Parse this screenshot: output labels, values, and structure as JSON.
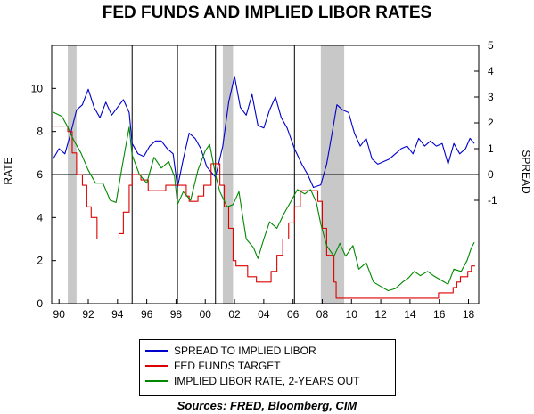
{
  "title": "FED FUNDS AND IMPLIED LIBOR RATES",
  "sources": "Sources:  FRED, Bloomberg, CIM",
  "chart_data": {
    "type": "line",
    "x_range": [
      1989.5,
      2018.7
    ],
    "left_axis": {
      "label": "RATE",
      "ticks": [
        "0",
        "2",
        "4",
        "6",
        "8",
        "10"
      ],
      "range": [
        0,
        12
      ]
    },
    "right_axis": {
      "label": "SPREAD",
      "ticks": [
        "-1",
        "0",
        "1",
        "2",
        "3",
        "4",
        "5"
      ],
      "range": [
        -5,
        5
      ]
    },
    "x_ticks": [
      "90",
      "92",
      "94",
      "96",
      "98",
      "00",
      "02",
      "04",
      "06",
      "08",
      "10",
      "12",
      "14",
      "16",
      "18"
    ],
    "x_tick_years": [
      1990,
      1992,
      1994,
      1996,
      1998,
      2000,
      2002,
      2004,
      2006,
      2008,
      2010,
      2012,
      2014,
      2016,
      2018
    ],
    "recessions": [
      [
        1990.6,
        1991.2
      ],
      [
        2001.2,
        2001.9
      ],
      [
        2007.9,
        2009.5
      ]
    ],
    "vertical_lines": [
      1995.0,
      1998.1,
      2000.7,
      2006.1
    ],
    "zero_line_spread": 0,
    "series": [
      {
        "name": "SPREAD TO IMPLIED LIBOR",
        "axis": "right",
        "color": "#0000cc",
        "points": [
          [
            1989.6,
            0.6
          ],
          [
            1990.0,
            1.0
          ],
          [
            1990.4,
            0.8
          ],
          [
            1990.8,
            1.6
          ],
          [
            1991.2,
            2.5
          ],
          [
            1991.6,
            2.7
          ],
          [
            1992.0,
            3.3
          ],
          [
            1992.4,
            2.6
          ],
          [
            1992.8,
            2.2
          ],
          [
            1993.2,
            2.8
          ],
          [
            1993.6,
            2.3
          ],
          [
            1994.0,
            2.6
          ],
          [
            1994.4,
            2.9
          ],
          [
            1994.8,
            2.4
          ],
          [
            1995.0,
            1.2
          ],
          [
            1995.4,
            0.8
          ],
          [
            1995.8,
            0.7
          ],
          [
            1996.2,
            1.1
          ],
          [
            1996.6,
            1.3
          ],
          [
            1997.0,
            1.3
          ],
          [
            1997.4,
            1.0
          ],
          [
            1997.8,
            0.8
          ],
          [
            1998.1,
            -0.5
          ],
          [
            1998.5,
            0.6
          ],
          [
            1998.9,
            1.6
          ],
          [
            1999.3,
            1.4
          ],
          [
            1999.7,
            1.0
          ],
          [
            2000.1,
            0.3
          ],
          [
            2000.7,
            -0.1
          ],
          [
            2001.2,
            1.1
          ],
          [
            2001.6,
            2.8
          ],
          [
            2002.0,
            3.8
          ],
          [
            2002.4,
            2.6
          ],
          [
            2002.8,
            2.3
          ],
          [
            2003.2,
            3.1
          ],
          [
            2003.6,
            1.9
          ],
          [
            2004.0,
            1.8
          ],
          [
            2004.4,
            2.5
          ],
          [
            2004.8,
            3.0
          ],
          [
            2005.2,
            2.2
          ],
          [
            2005.6,
            1.8
          ],
          [
            2006.1,
            1.0
          ],
          [
            2006.6,
            0.4
          ],
          [
            2007.0,
            0.0
          ],
          [
            2007.4,
            -0.5
          ],
          [
            2007.9,
            -0.4
          ],
          [
            2008.3,
            0.4
          ],
          [
            2008.7,
            1.7
          ],
          [
            2009.0,
            2.7
          ],
          [
            2009.4,
            2.5
          ],
          [
            2009.8,
            2.4
          ],
          [
            2010.2,
            1.6
          ],
          [
            2010.6,
            1.1
          ],
          [
            2011.0,
            1.4
          ],
          [
            2011.4,
            0.6
          ],
          [
            2011.8,
            0.4
          ],
          [
            2012.2,
            0.5
          ],
          [
            2012.6,
            0.6
          ],
          [
            2013.0,
            0.8
          ],
          [
            2013.4,
            1.0
          ],
          [
            2013.8,
            1.1
          ],
          [
            2014.2,
            0.8
          ],
          [
            2014.6,
            1.4
          ],
          [
            2015.0,
            1.1
          ],
          [
            2015.4,
            1.3
          ],
          [
            2015.8,
            1.1
          ],
          [
            2016.2,
            1.2
          ],
          [
            2016.6,
            0.4
          ],
          [
            2017.0,
            1.2
          ],
          [
            2017.4,
            0.8
          ],
          [
            2017.8,
            1.0
          ],
          [
            2018.1,
            1.4
          ],
          [
            2018.4,
            1.2
          ]
        ]
      },
      {
        "name": "FED FUNDS TARGET",
        "axis": "left",
        "color": "#dd0000",
        "points": [
          [
            1989.6,
            8.25
          ],
          [
            1990.6,
            8.0
          ],
          [
            1990.9,
            7.0
          ],
          [
            1991.2,
            6.0
          ],
          [
            1991.6,
            5.5
          ],
          [
            1991.9,
            4.5
          ],
          [
            1992.2,
            4.0
          ],
          [
            1992.6,
            3.0
          ],
          [
            1994.1,
            3.25
          ],
          [
            1994.4,
            4.25
          ],
          [
            1994.8,
            5.5
          ],
          [
            1995.0,
            6.0
          ],
          [
            1995.6,
            5.75
          ],
          [
            1996.1,
            5.25
          ],
          [
            1997.3,
            5.5
          ],
          [
            1998.7,
            5.0
          ],
          [
            1998.9,
            4.75
          ],
          [
            1999.5,
            5.0
          ],
          [
            1999.9,
            5.5
          ],
          [
            2000.4,
            6.5
          ],
          [
            2001.0,
            5.5
          ],
          [
            2001.3,
            4.5
          ],
          [
            2001.6,
            3.5
          ],
          [
            2001.9,
            2.0
          ],
          [
            2002.1,
            1.75
          ],
          [
            2002.9,
            1.25
          ],
          [
            2003.5,
            1.0
          ],
          [
            2004.5,
            1.5
          ],
          [
            2004.9,
            2.25
          ],
          [
            2005.3,
            3.0
          ],
          [
            2005.7,
            3.75
          ],
          [
            2006.1,
            4.5
          ],
          [
            2006.5,
            5.25
          ],
          [
            2007.7,
            4.75
          ],
          [
            2008.0,
            3.5
          ],
          [
            2008.3,
            2.25
          ],
          [
            2008.8,
            1.0
          ],
          [
            2008.95,
            0.25
          ],
          [
            2015.95,
            0.5
          ],
          [
            2016.95,
            0.75
          ],
          [
            2017.2,
            1.0
          ],
          [
            2017.45,
            1.25
          ],
          [
            2017.95,
            1.5
          ],
          [
            2018.2,
            1.75
          ]
        ]
      },
      {
        "name": "IMPLIED LIBOR RATE, 2-YEARS OUT",
        "axis": "left",
        "color": "#008800",
        "points": [
          [
            1989.6,
            8.9
          ],
          [
            1990.2,
            8.7
          ],
          [
            1990.6,
            8.2
          ],
          [
            1991.0,
            7.6
          ],
          [
            1991.5,
            7.0
          ],
          [
            1992.0,
            6.2
          ],
          [
            1992.5,
            5.6
          ],
          [
            1993.0,
            5.6
          ],
          [
            1993.5,
            4.8
          ],
          [
            1993.9,
            4.7
          ],
          [
            1994.3,
            6.3
          ],
          [
            1994.8,
            8.2
          ],
          [
            1995.0,
            6.9
          ],
          [
            1995.5,
            6.0
          ],
          [
            1996.0,
            5.6
          ],
          [
            1996.5,
            6.8
          ],
          [
            1997.0,
            6.3
          ],
          [
            1997.5,
            6.6
          ],
          [
            1997.9,
            5.9
          ],
          [
            1998.1,
            4.6
          ],
          [
            1998.5,
            5.2
          ],
          [
            1999.0,
            4.8
          ],
          [
            1999.5,
            6.2
          ],
          [
            2000.0,
            7.1
          ],
          [
            2000.3,
            7.4
          ],
          [
            2000.7,
            6.0
          ],
          [
            2001.0,
            5.2
          ],
          [
            2001.5,
            4.5
          ],
          [
            2001.9,
            4.6
          ],
          [
            2002.3,
            5.2
          ],
          [
            2002.8,
            3.0
          ],
          [
            2003.3,
            2.6
          ],
          [
            2003.6,
            2.1
          ],
          [
            2004.0,
            3.0
          ],
          [
            2004.4,
            3.8
          ],
          [
            2004.9,
            3.5
          ],
          [
            2005.4,
            4.2
          ],
          [
            2005.9,
            4.8
          ],
          [
            2006.3,
            5.3
          ],
          [
            2006.8,
            5.1
          ],
          [
            2007.2,
            5.3
          ],
          [
            2007.6,
            4.7
          ],
          [
            2007.9,
            3.7
          ],
          [
            2008.3,
            2.7
          ],
          [
            2008.8,
            2.2
          ],
          [
            2009.2,
            2.8
          ],
          [
            2009.6,
            2.2
          ],
          [
            2010.1,
            2.7
          ],
          [
            2010.5,
            1.6
          ],
          [
            2011.0,
            1.9
          ],
          [
            2011.5,
            1.0
          ],
          [
            2012.0,
            0.8
          ],
          [
            2012.5,
            0.6
          ],
          [
            2013.0,
            0.7
          ],
          [
            2013.5,
            1.0
          ],
          [
            2013.9,
            1.2
          ],
          [
            2014.3,
            1.5
          ],
          [
            2014.7,
            1.3
          ],
          [
            2015.2,
            1.5
          ],
          [
            2015.6,
            1.3
          ],
          [
            2016.1,
            1.1
          ],
          [
            2016.6,
            0.9
          ],
          [
            2017.0,
            1.6
          ],
          [
            2017.5,
            1.5
          ],
          [
            2017.9,
            2.0
          ],
          [
            2018.2,
            2.6
          ],
          [
            2018.4,
            2.85
          ]
        ]
      }
    ]
  }
}
